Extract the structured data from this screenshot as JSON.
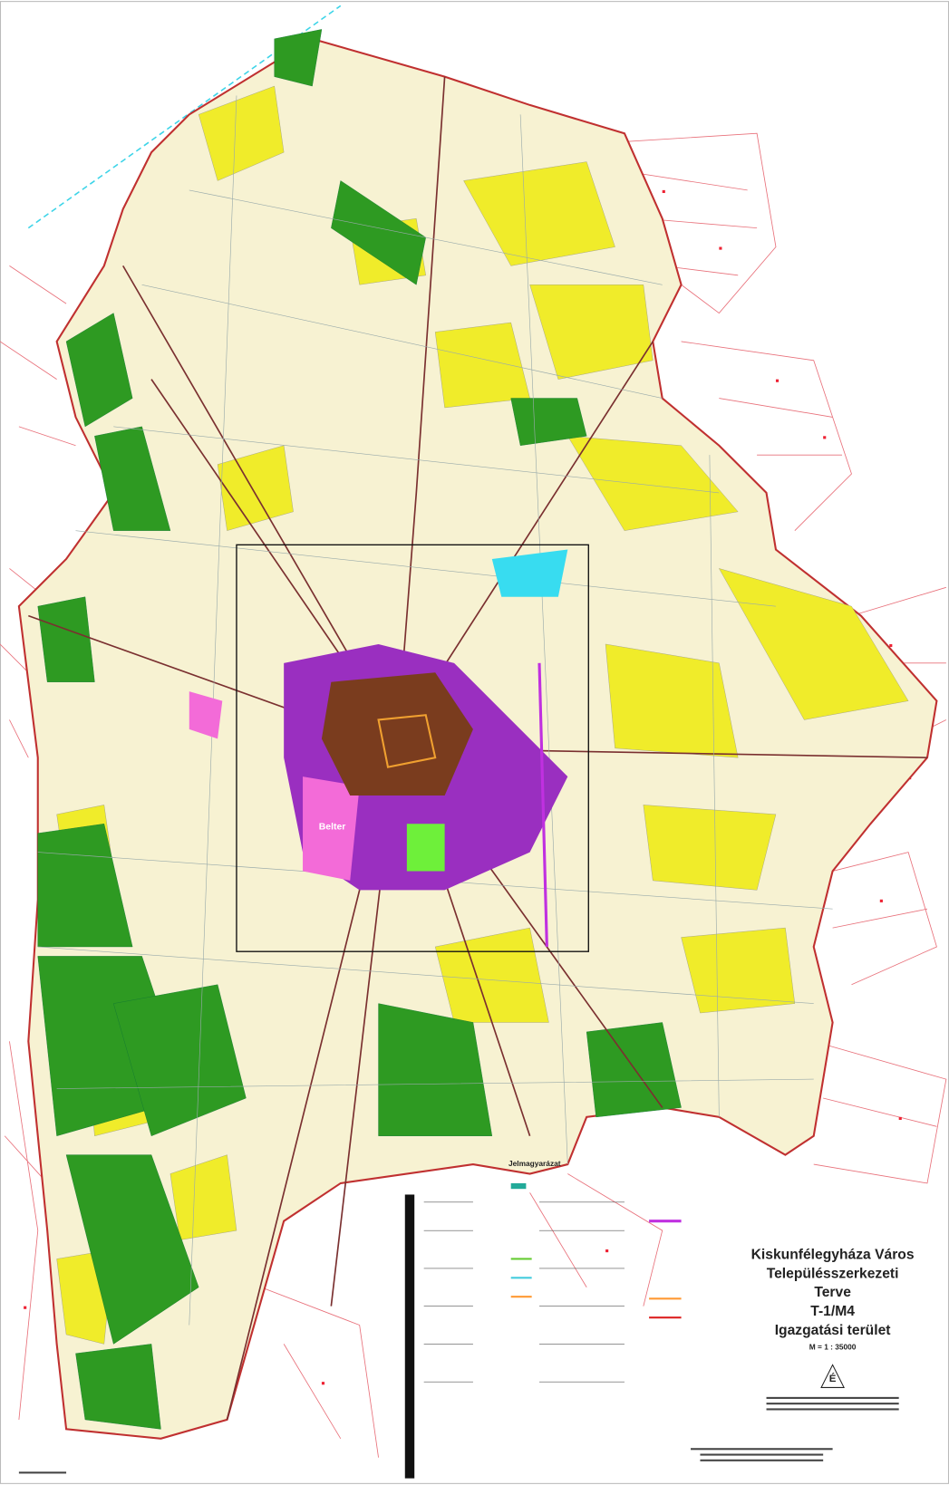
{
  "map": {
    "title_lines": [
      "Kiskunfélegyháza Város",
      "Településszerkezeti",
      "Terve",
      "T-1/M4",
      "Igazgatási terület"
    ],
    "scale": "M = 1 : 35000",
    "north": "É",
    "legend_title": "Jelmagyarázat",
    "town_label": "Belter"
  }
}
